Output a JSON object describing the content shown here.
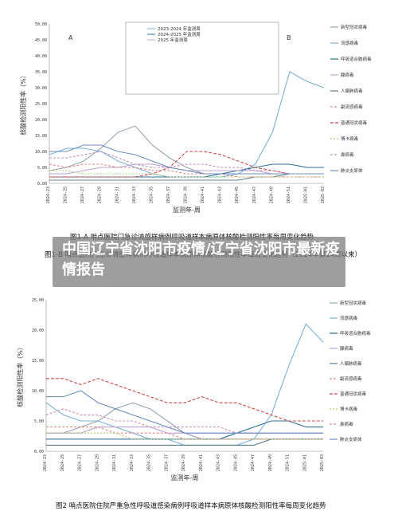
{
  "banner": {
    "title": "中国辽宁省沈阳市疫情/辽宁省沈阳市最新疫情报告"
  },
  "legend": [
    "新型冠状病毒",
    "流感病毒",
    "呼吸道合胞病毒",
    "腺病毒",
    "人偏肺病毒",
    "副流感病毒",
    "普通冠状病毒",
    "博卡病毒",
    "鼻病毒",
    "肺炎支原体"
  ],
  "colors": [
    "#9aa6b2",
    "#7bb1d9",
    "#2f6f9a",
    "#bfa1d6",
    "#5c7d8f",
    "#e08a8a",
    "#c94a4a",
    "#b5c97a",
    "#c98fb8",
    "#6e8fbf"
  ],
  "chart_data": [
    {
      "type": "line",
      "title": "图1-A 哨点医院门急诊流感样病例呼吸道样本病原体核酸检测阳性率每周变化趋势",
      "ylabel": "核酸检测阳性率（%）",
      "xlabel": "监测年-周",
      "panel_labels": [
        "A",
        "B"
      ],
      "ylim": [
        0,
        50
      ],
      "yticks": [
        "0.00",
        "5.00",
        "10.00",
        "15.00",
        "20.00",
        "25.00",
        "30.00",
        "35.00",
        "40.00",
        "45.00",
        "50.00"
      ],
      "categories": [
        "2024-23",
        "2024-25",
        "2024-27",
        "2024-29",
        "2024-31",
        "2024-33",
        "2024-35",
        "2024-37",
        "2024-39",
        "2024-41",
        "2024-43",
        "2024-45",
        "2024-47",
        "2024-49",
        "2024-51",
        "2025-01",
        "2025-03"
      ],
      "series": [
        {
          "name": "新型冠状病毒",
          "values": [
            4,
            5,
            7,
            11,
            16,
            18,
            12,
            8,
            5,
            3,
            3,
            3,
            3,
            3,
            3,
            3,
            3
          ]
        },
        {
          "name": "流感病毒",
          "values": [
            9,
            11,
            11,
            10,
            7,
            5,
            3,
            2,
            2,
            2,
            2,
            3,
            6,
            16,
            35,
            32,
            30
          ]
        },
        {
          "name": "呼吸道合胞病毒",
          "values": [
            2,
            2,
            2,
            2,
            2,
            2,
            2,
            2,
            2,
            2,
            3,
            4,
            5,
            6,
            6,
            5,
            5
          ]
        },
        {
          "name": "腺病毒",
          "values": [
            3,
            3,
            4,
            5,
            5,
            6,
            6,
            5,
            4,
            4,
            4,
            4,
            4,
            3,
            3,
            3,
            3
          ]
        },
        {
          "name": "人偏肺病毒",
          "values": [
            1,
            1,
            1,
            1,
            1,
            1,
            1,
            1,
            1,
            1,
            1,
            1,
            2,
            2,
            3,
            3,
            3
          ]
        },
        {
          "name": "副流感病毒",
          "values": [
            6,
            5,
            6,
            6,
            5,
            5,
            4,
            4,
            3,
            3,
            3,
            2,
            2,
            2,
            2,
            2,
            2
          ]
        },
        {
          "name": "普通冠状病毒",
          "values": [
            2,
            2,
            2,
            2,
            2,
            2,
            3,
            5,
            10,
            10,
            9,
            7,
            5,
            4,
            3,
            3,
            3
          ]
        },
        {
          "name": "博卡病毒",
          "values": [
            4,
            4,
            3,
            3,
            3,
            3,
            3,
            2,
            2,
            2,
            2,
            2,
            2,
            2,
            2,
            2,
            2
          ]
        },
        {
          "name": "鼻病毒",
          "values": [
            8,
            8,
            9,
            10,
            8,
            6,
            5,
            5,
            6,
            6,
            5,
            5,
            4,
            4,
            3,
            3,
            3
          ]
        },
        {
          "name": "肺炎支原体",
          "values": [
            10,
            10,
            12,
            12,
            10,
            9,
            7,
            5,
            4,
            3,
            3,
            3,
            3,
            3,
            3,
            3,
            3
          ]
        }
      ],
      "inset": {
        "legend": [
          "2023-2024 年监测周",
          "2024-2025 年监测周",
          "2025 年监测周"
        ]
      }
    },
    {
      "type": "line",
      "title": "图2 哨点医院住院严重急性呼吸道感染病例呼吸道样本病原体核酸检测阳性率每周变化趋势",
      "ylabel": "核酸检测阳性率（%）",
      "xlabel": "监测年-周",
      "ylim": [
        0,
        25
      ],
      "yticks": [
        "0.00",
        "5.00",
        "10.00",
        "15.00",
        "20.00",
        "25.00"
      ],
      "categories": [
        "2024-23",
        "2024-25",
        "2024-27",
        "2024-29",
        "2024-31",
        "2024-33",
        "2024-35",
        "2024-37",
        "2024-39",
        "2024-41",
        "2024-43",
        "2024-45",
        "2024-47",
        "2024-49",
        "2024-51",
        "2025-01",
        "2025-03"
      ],
      "series": [
        {
          "name": "新型冠状病毒",
          "values": [
            3,
            3,
            4,
            5,
            7,
            8,
            7,
            5,
            3,
            2,
            2,
            2,
            2,
            2,
            2,
            2,
            2
          ]
        },
        {
          "name": "流感病毒",
          "values": [
            8,
            6,
            5,
            5,
            4,
            3,
            2,
            2,
            1,
            1,
            1,
            1,
            2,
            6,
            14,
            21,
            18
          ]
        },
        {
          "name": "呼吸道合胞病毒",
          "values": [
            2,
            2,
            2,
            2,
            2,
            2,
            2,
            2,
            2,
            2,
            2,
            3,
            4,
            5,
            5,
            4,
            4
          ]
        },
        {
          "name": "腺病毒",
          "values": [
            3,
            3,
            3,
            4,
            4,
            4,
            4,
            3,
            3,
            3,
            3,
            3,
            3,
            3,
            3,
            3,
            3
          ]
        },
        {
          "name": "人偏肺病毒",
          "values": [
            1,
            1,
            1,
            1,
            1,
            1,
            1,
            1,
            1,
            1,
            1,
            1,
            1,
            2,
            2,
            2,
            2
          ]
        },
        {
          "name": "副流感病毒",
          "values": [
            4,
            4,
            4,
            4,
            3,
            3,
            3,
            3,
            2,
            2,
            2,
            2,
            2,
            2,
            2,
            2,
            2
          ]
        },
        {
          "name": "普通冠状病毒",
          "values": [
            12,
            12,
            11,
            12,
            11,
            10,
            9,
            8,
            8,
            9,
            8,
            8,
            7,
            6,
            5,
            5,
            5
          ]
        },
        {
          "name": "博卡病毒",
          "values": [
            3,
            3,
            3,
            3,
            3,
            2,
            2,
            2,
            2,
            2,
            2,
            2,
            2,
            2,
            2,
            2,
            2
          ]
        },
        {
          "name": "鼻病毒",
          "values": [
            6,
            7,
            6,
            6,
            5,
            5,
            4,
            4,
            4,
            4,
            4,
            3,
            3,
            3,
            3,
            3,
            3
          ]
        },
        {
          "name": "肺炎支原体",
          "values": [
            9,
            9,
            10,
            8,
            7,
            6,
            5,
            4,
            3,
            3,
            3,
            3,
            3,
            3,
            3,
            3,
            3
          ]
        }
      ]
    }
  ],
  "caption_mid": "图1-B 哨点医院门急诊流感样病例呼吸道样本病原体核酸检测阳性率每周变化趋势（2024年第14周以来）"
}
